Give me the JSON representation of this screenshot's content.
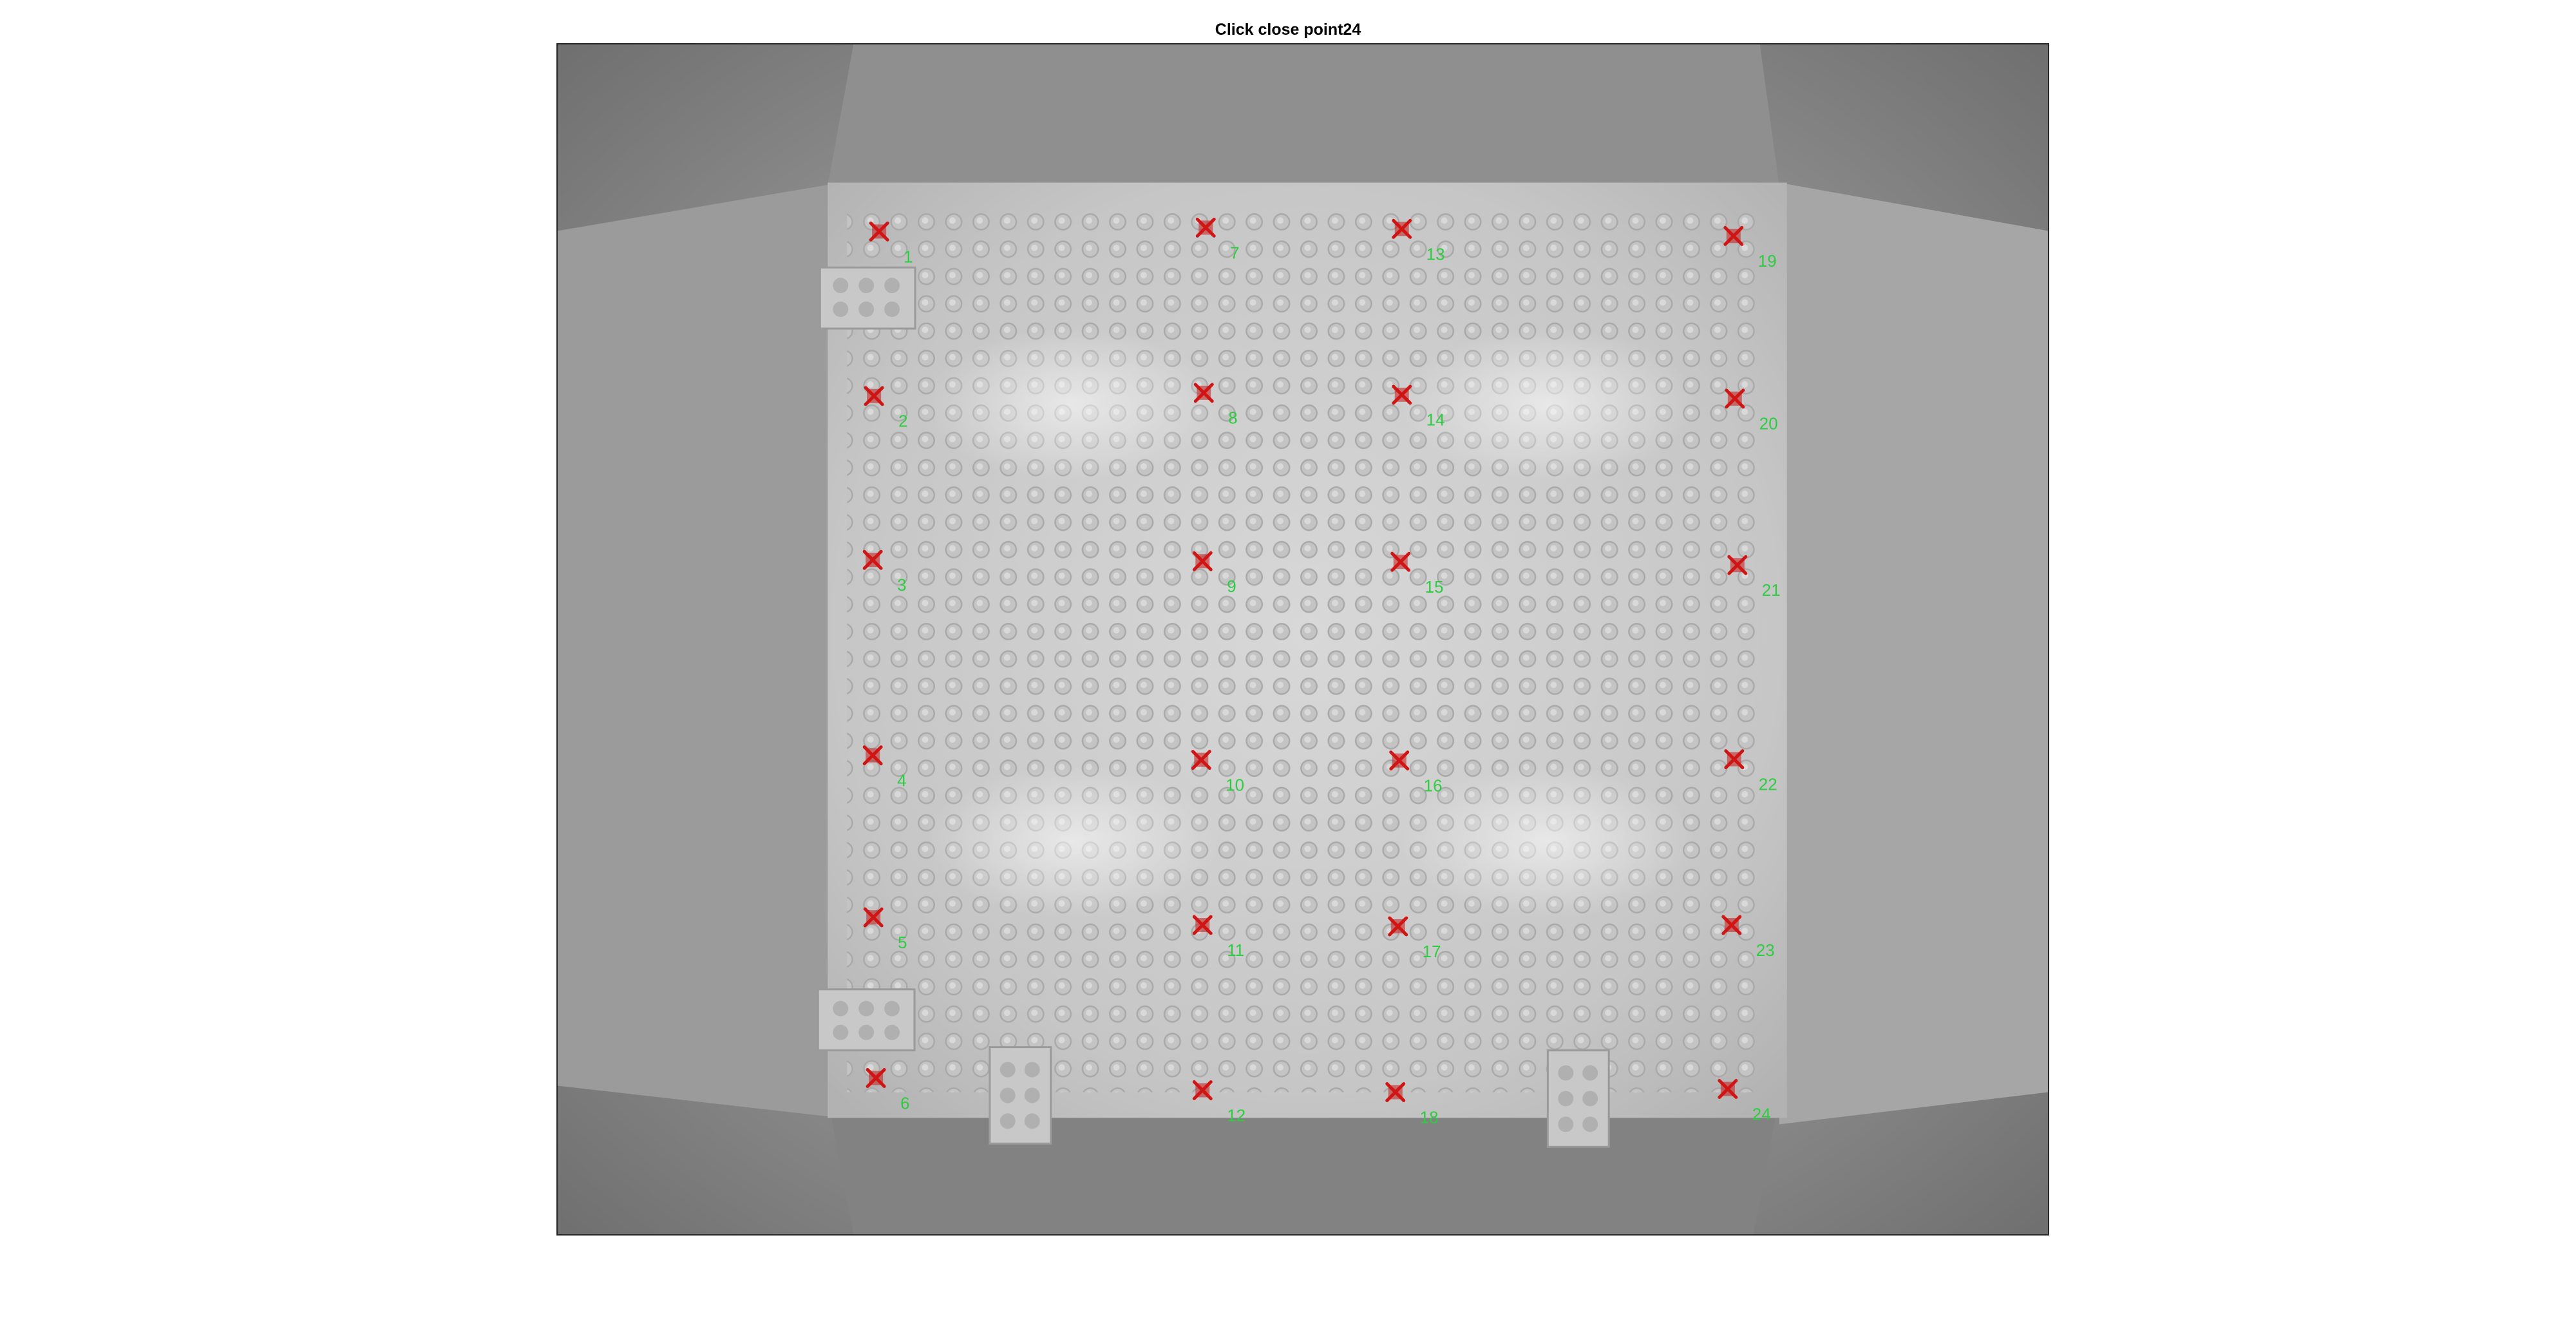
{
  "figure": {
    "title": "Click close point24"
  },
  "colors": {
    "marker": "#d01515",
    "label": "#2ecc40"
  },
  "icons": {
    "marker": "x-marker-icon"
  },
  "points": [
    {
      "id": "1",
      "label": "1"
    },
    {
      "id": "2",
      "label": "2"
    },
    {
      "id": "3",
      "label": "3"
    },
    {
      "id": "4",
      "label": "4"
    },
    {
      "id": "5",
      "label": "5"
    },
    {
      "id": "6",
      "label": "6"
    },
    {
      "id": "7",
      "label": "7"
    },
    {
      "id": "8",
      "label": "8"
    },
    {
      "id": "9",
      "label": "9"
    },
    {
      "id": "10",
      "label": "10"
    },
    {
      "id": "11",
      "label": "11"
    },
    {
      "id": "12",
      "label": "12"
    },
    {
      "id": "13",
      "label": "13"
    },
    {
      "id": "14",
      "label": "14"
    },
    {
      "id": "15",
      "label": "15"
    },
    {
      "id": "16",
      "label": "16"
    },
    {
      "id": "17",
      "label": "17"
    },
    {
      "id": "18",
      "label": "18"
    },
    {
      "id": "19",
      "label": "19"
    },
    {
      "id": "20",
      "label": "20"
    },
    {
      "id": "21",
      "label": "21"
    },
    {
      "id": "22",
      "label": "22"
    },
    {
      "id": "23",
      "label": "23"
    },
    {
      "id": "24",
      "label": "24"
    }
  ]
}
